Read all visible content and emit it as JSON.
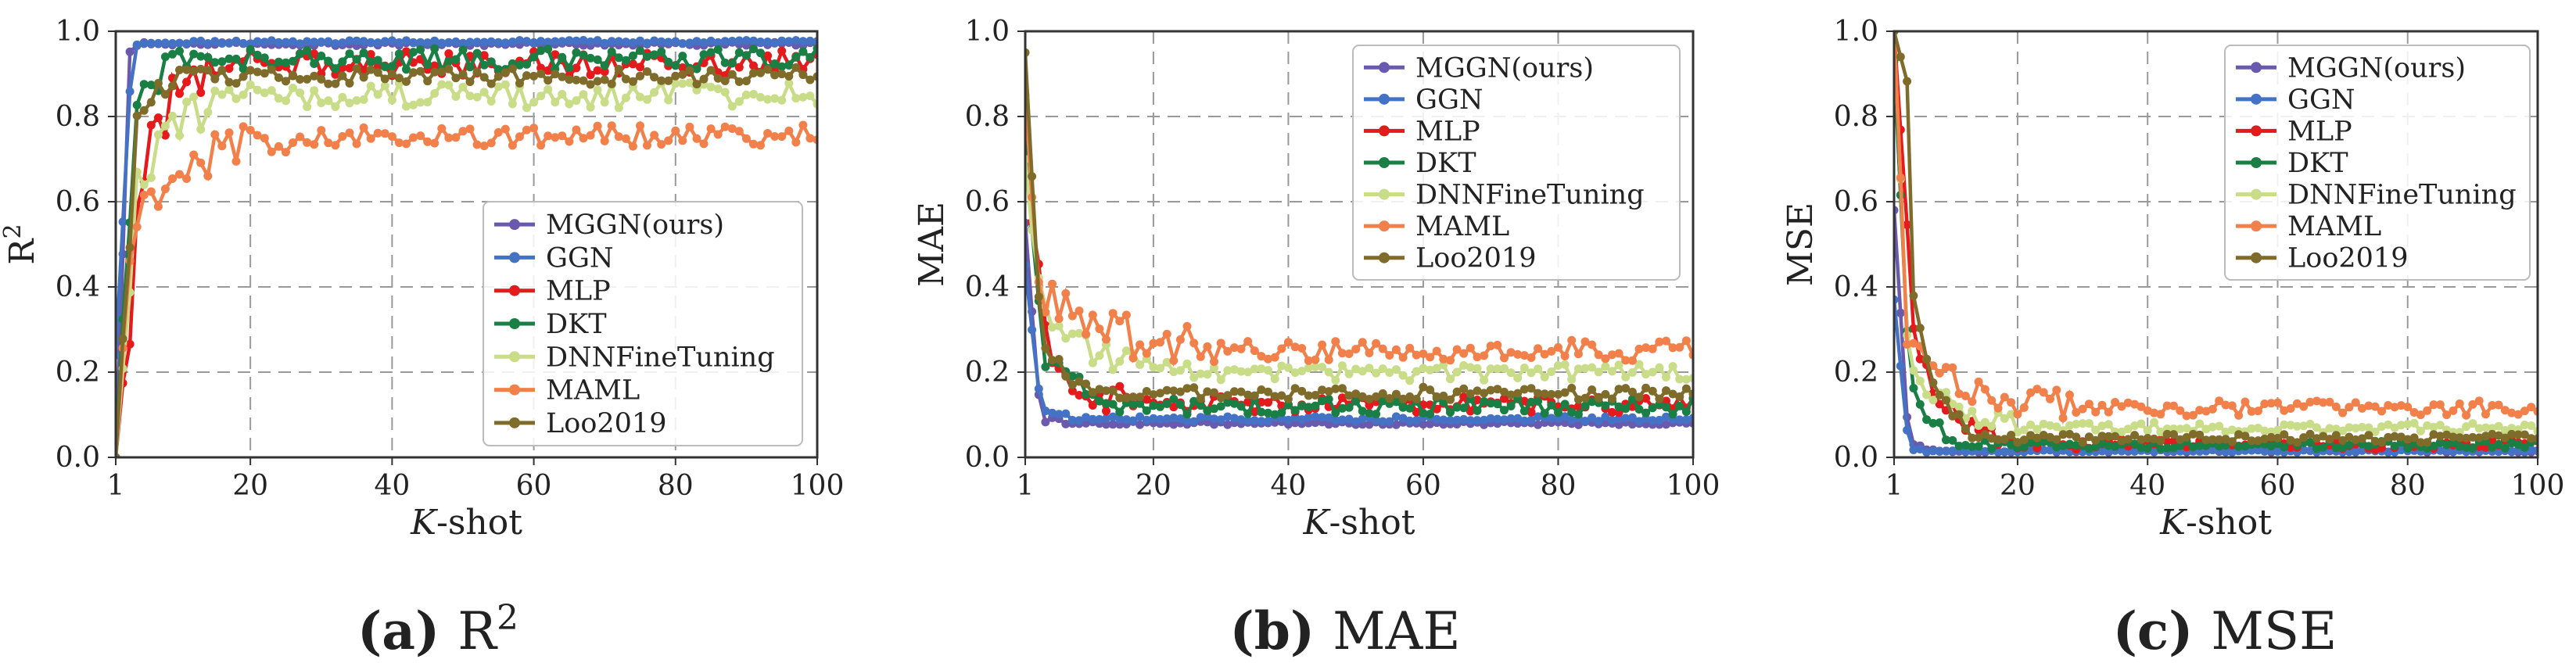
{
  "figure": {
    "x_label_italic": "K",
    "x_label_rest": "-shot",
    "series_colors": {
      "MGGN(ours)": "#6A5AAE",
      "GGN": "#4472C4",
      "MLP": "#E41A1C",
      "DKT": "#1A7F45",
      "DNNFineTuning": "#C9DC87",
      "MAML": "#F2804A",
      "Loo2019": "#7F6C2A"
    }
  },
  "chart_data": [
    {
      "id": "r2",
      "type": "line",
      "caption_tag": "(a)",
      "caption_text": "R",
      "caption_sup": "2",
      "ylabel": "R",
      "ylabel_sup": "2",
      "xlim": [
        1,
        100
      ],
      "ylim": [
        0,
        1.0
      ],
      "xticks": [
        1,
        20,
        40,
        60,
        80,
        100
      ],
      "yticks": [
        "0.0",
        "0.2",
        "0.4",
        "0.6",
        "0.8",
        "1.0"
      ],
      "legend_position": "lower-right",
      "series": [
        {
          "name": "MGGN(ours)",
          "start": 0.0,
          "mid": 0.95,
          "plateau": 0.97,
          "settle": 4,
          "noise": 0.004
        },
        {
          "name": "GGN",
          "start": 0.24,
          "mid": 0.86,
          "plateau": 0.975,
          "settle": 5,
          "noise": 0.004
        },
        {
          "name": "MLP",
          "start": 0.0,
          "mid": 0.3,
          "plateau": 0.925,
          "settle": 14,
          "noise": 0.03
        },
        {
          "name": "DKT",
          "start": 0.0,
          "mid": 0.6,
          "plateau": 0.935,
          "settle": 10,
          "noise": 0.025
        },
        {
          "name": "DNNFineTuning",
          "start": 0.0,
          "mid": 0.35,
          "plateau": 0.85,
          "settle": 14,
          "noise": 0.03
        },
        {
          "name": "MAML",
          "start": 0.0,
          "mid": 0.45,
          "plateau": 0.755,
          "settle": 25,
          "noise": 0.025
        },
        {
          "name": "Loo2019",
          "start": 0.0,
          "mid": 0.5,
          "plateau": 0.895,
          "settle": 9,
          "noise": 0.02
        }
      ]
    },
    {
      "id": "mae",
      "type": "line",
      "caption_tag": "(b)",
      "caption_text": "MAE",
      "caption_sup": "",
      "ylabel": "MAE",
      "ylabel_sup": "",
      "xlim": [
        1,
        100
      ],
      "ylim": [
        0,
        1.0
      ],
      "xticks": [
        1,
        20,
        40,
        60,
        80,
        100
      ],
      "yticks": [
        "0.0",
        "0.2",
        "0.4",
        "0.6",
        "0.8",
        "1.0"
      ],
      "legend_position": "upper-right",
      "series": [
        {
          "name": "MGGN(ours)",
          "start": 0.55,
          "mid": 0.15,
          "plateau": 0.08,
          "settle": 6,
          "noise": 0.004
        },
        {
          "name": "GGN",
          "start": 0.45,
          "mid": 0.17,
          "plateau": 0.09,
          "settle": 8,
          "noise": 0.006
        },
        {
          "name": "MLP",
          "start": 0.75,
          "mid": 0.42,
          "plateau": 0.125,
          "settle": 16,
          "noise": 0.02
        },
        {
          "name": "DKT",
          "start": 0.78,
          "mid": 0.35,
          "plateau": 0.12,
          "settle": 14,
          "noise": 0.02
        },
        {
          "name": "DNNFineTuning",
          "start": 0.7,
          "mid": 0.42,
          "plateau": 0.2,
          "settle": 22,
          "noise": 0.02
        },
        {
          "name": "MAML",
          "start": 0.85,
          "mid": 0.43,
          "plateau": 0.25,
          "settle": 30,
          "noise": 0.025
        },
        {
          "name": "Loo2019",
          "start": 0.95,
          "mid": 0.4,
          "plateau": 0.15,
          "settle": 12,
          "noise": 0.015
        }
      ]
    },
    {
      "id": "mse",
      "type": "line",
      "caption_tag": "(c)",
      "caption_text": "MSE",
      "caption_sup": "",
      "ylabel": "MSE",
      "ylabel_sup": "",
      "xlim": [
        1,
        100
      ],
      "ylim": [
        0,
        1.0
      ],
      "xticks": [
        1,
        20,
        40,
        60,
        80,
        100
      ],
      "yticks": [
        "0.0",
        "0.2",
        "0.4",
        "0.6",
        "0.8",
        "1.0"
      ],
      "legend_position": "upper-right",
      "series": [
        {
          "name": "MGGN(ours)",
          "start": 0.58,
          "mid": 0.1,
          "plateau": 0.015,
          "settle": 6,
          "noise": 0.003
        },
        {
          "name": "GGN",
          "start": 0.37,
          "mid": 0.06,
          "plateau": 0.015,
          "settle": 6,
          "noise": 0.003
        },
        {
          "name": "MLP",
          "start": 1.0,
          "mid": 0.54,
          "plateau": 0.03,
          "settle": 16,
          "noise": 0.012
        },
        {
          "name": "DKT",
          "start": 0.93,
          "mid": 0.3,
          "plateau": 0.03,
          "settle": 12,
          "noise": 0.01
        },
        {
          "name": "DNNFineTuning",
          "start": 1.0,
          "mid": 0.3,
          "plateau": 0.07,
          "settle": 20,
          "noise": 0.012
        },
        {
          "name": "MAML",
          "start": 1.0,
          "mid": 0.3,
          "plateau": 0.115,
          "settle": 28,
          "noise": 0.018
        },
        {
          "name": "Loo2019",
          "start": 1.0,
          "mid": 0.87,
          "plateau": 0.045,
          "settle": 12,
          "noise": 0.01
        }
      ]
    }
  ]
}
